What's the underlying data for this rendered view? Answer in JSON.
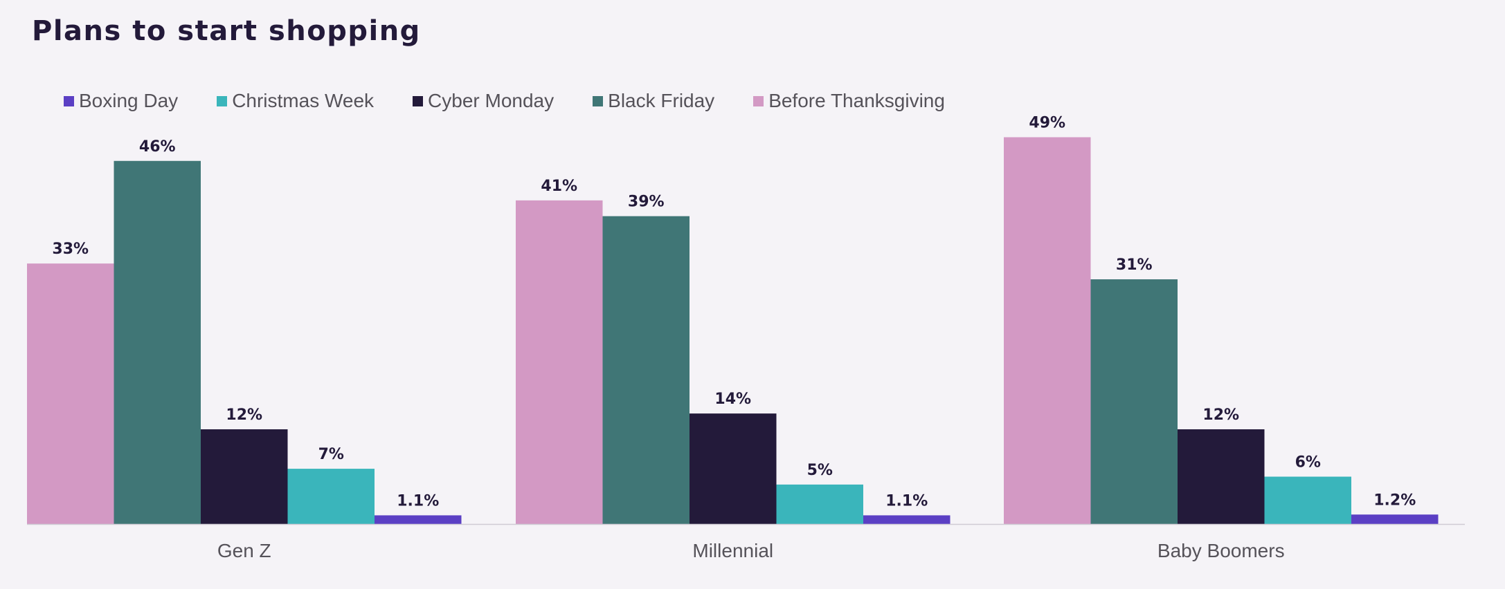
{
  "chart_data": {
    "type": "bar",
    "title": "Plans to start shopping",
    "categories": [
      "Gen Z",
      "Millennial",
      "Baby Boomers"
    ],
    "legend_order": [
      "Boxing Day",
      "Christmas Week",
      "Cyber Monday",
      "Black Friday",
      "Before Thanksgiving"
    ],
    "legend_placement": "top-left",
    "grid": false,
    "ylim": [
      0,
      55
    ],
    "series": [
      {
        "name": "Before Thanksgiving",
        "color": "#d399c4",
        "values": [
          33,
          41,
          49
        ],
        "labels": [
          "33%",
          "41%",
          "49%"
        ]
      },
      {
        "name": "Black Friday",
        "color": "#407676",
        "values": [
          46,
          39,
          31
        ],
        "labels": [
          "46%",
          "39%",
          "31%"
        ]
      },
      {
        "name": "Cyber Monday",
        "color": "#231a3a",
        "values": [
          12,
          14,
          12
        ],
        "labels": [
          "12%",
          "14%",
          "12%"
        ]
      },
      {
        "name": "Christmas Week",
        "color": "#3ab5bb",
        "values": [
          7,
          5,
          6
        ],
        "labels": [
          "7%",
          "5%",
          "6%"
        ]
      },
      {
        "name": "Boxing Day",
        "color": "#5b3fc4",
        "values": [
          1.1,
          1.1,
          1.2
        ],
        "labels": [
          "1.1%",
          "1.1%",
          "1.2%"
        ]
      }
    ],
    "xlabel": "",
    "ylabel": ""
  }
}
